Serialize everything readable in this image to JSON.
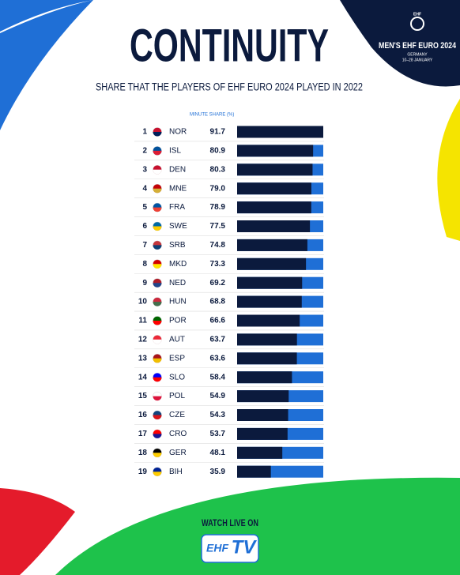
{
  "chart_data": {
    "type": "bar",
    "title": "CONTINUITY",
    "subtitle": "SHARE THAT THE PLAYERS OF EHF EURO 2024 PLAYED IN 2022",
    "axis_label": "MINUTE SHARE (%)",
    "ranks": [
      1,
      2,
      3,
      4,
      5,
      6,
      7,
      8,
      9,
      10,
      11,
      12,
      13,
      14,
      15,
      16,
      17,
      18,
      19
    ],
    "categories": [
      "NOR",
      "ISL",
      "DEN",
      "MNE",
      "FRA",
      "SWE",
      "SRB",
      "MKD",
      "NED",
      "HUN",
      "POR",
      "AUT",
      "ESP",
      "SLO",
      "POL",
      "CZE",
      "CRO",
      "GER",
      "BIH"
    ],
    "values": [
      91.7,
      80.9,
      80.3,
      79.0,
      78.9,
      77.5,
      74.8,
      73.3,
      69.2,
      68.8,
      66.6,
      63.7,
      63.6,
      58.4,
      54.9,
      54.3,
      53.7,
      48.1,
      35.9
    ],
    "value_labels": [
      "91.7",
      "80.9",
      "80.3",
      "79.0",
      "78.9",
      "77.5",
      "74.8",
      "73.3",
      "69.2",
      "68.8",
      "66.6",
      "63.7",
      "63.6",
      "58.4",
      "54.9",
      "54.3",
      "53.7",
      "48.1",
      "35.9"
    ],
    "xlim": [
      0,
      91.7
    ],
    "color": "#0b1a3d",
    "track_color": "#1f6fd6"
  },
  "logo": {
    "top": "EHF",
    "name": "MEN'S EHF EURO 2024",
    "country": "GERMANY",
    "dates": "10–28 JANUARY"
  },
  "footer": {
    "text": "WATCH LIVE ON",
    "logo_ehf": "EHF",
    "logo_tv": "TV"
  }
}
